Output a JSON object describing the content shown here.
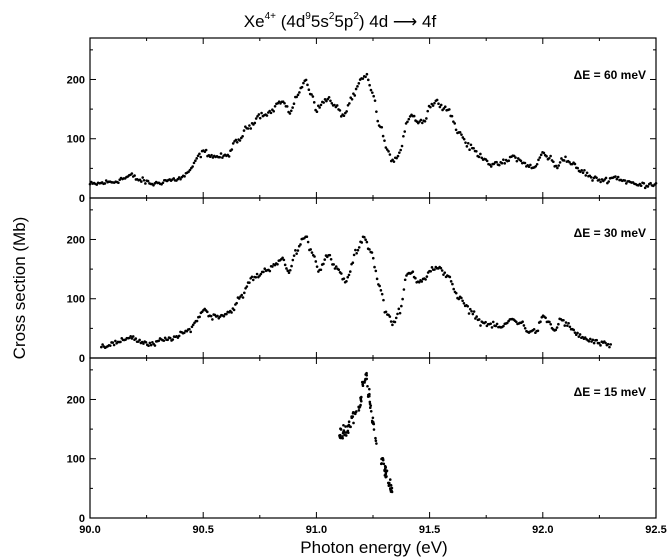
{
  "chart_data": {
    "type": "scatter",
    "title_parts": {
      "ion": "Xe",
      "charge": "4+",
      "config_open": " (4d",
      "sup_9": "9",
      "mid_5s": "5s",
      "sup_2a": "2",
      "mid_5p": "5p",
      "sup_2b": "2",
      "config_close": ") 4d ",
      "arrow": "⟶",
      "transition_end": " 4f"
    },
    "xlabel": "Photon energy (eV)",
    "ylabel": "Cross section (Mb)",
    "xlim": [
      90.0,
      92.5
    ],
    "x_ticks": [
      "90.0",
      "90.5",
      "91.0",
      "91.5",
      "92.0",
      "92.5"
    ],
    "x_tick_values": [
      90.0,
      90.5,
      91.0,
      91.5,
      92.0,
      92.5
    ],
    "ylim": [
      0,
      270
    ],
    "panels": [
      {
        "label": "ΔE = 60 meV",
        "y_ticks": [
          "0",
          "100",
          "200"
        ],
        "y_tick_values": [
          0,
          100,
          200
        ],
        "x_range": [
          90.0,
          92.5
        ],
        "curve": [
          [
            90.0,
            23
          ],
          [
            90.1,
            27
          ],
          [
            90.15,
            33
          ],
          [
            90.18,
            38
          ],
          [
            90.22,
            30
          ],
          [
            90.28,
            24
          ],
          [
            90.35,
            30
          ],
          [
            90.4,
            33
          ],
          [
            90.44,
            45
          ],
          [
            90.48,
            70
          ],
          [
            90.5,
            78
          ],
          [
            90.55,
            70
          ],
          [
            90.6,
            70
          ],
          [
            90.65,
            95
          ],
          [
            90.7,
            120
          ],
          [
            90.75,
            140
          ],
          [
            90.8,
            145
          ],
          [
            90.83,
            160
          ],
          [
            90.85,
            162
          ],
          [
            90.88,
            145
          ],
          [
            90.92,
            175
          ],
          [
            90.95,
            198
          ],
          [
            90.98,
            175
          ],
          [
            91.0,
            150
          ],
          [
            91.05,
            168
          ],
          [
            91.08,
            155
          ],
          [
            91.12,
            140
          ],
          [
            91.16,
            170
          ],
          [
            91.2,
            200
          ],
          [
            91.22,
            205
          ],
          [
            91.25,
            175
          ],
          [
            91.28,
            120
          ],
          [
            91.32,
            75
          ],
          [
            91.34,
            62
          ],
          [
            91.37,
            75
          ],
          [
            91.4,
            130
          ],
          [
            91.42,
            142
          ],
          [
            91.45,
            128
          ],
          [
            91.48,
            132
          ],
          [
            91.5,
            155
          ],
          [
            91.53,
            162
          ],
          [
            91.58,
            150
          ],
          [
            91.63,
            110
          ],
          [
            91.68,
            85
          ],
          [
            91.73,
            70
          ],
          [
            91.78,
            55
          ],
          [
            91.83,
            60
          ],
          [
            91.87,
            70
          ],
          [
            91.92,
            58
          ],
          [
            91.96,
            50
          ],
          [
            92.0,
            75
          ],
          [
            92.03,
            68
          ],
          [
            92.06,
            52
          ],
          [
            92.09,
            68
          ],
          [
            92.12,
            60
          ],
          [
            92.17,
            45
          ],
          [
            92.23,
            32
          ],
          [
            92.27,
            30
          ],
          [
            92.32,
            35
          ],
          [
            92.37,
            28
          ],
          [
            92.42,
            22
          ],
          [
            92.47,
            23
          ],
          [
            92.5,
            25
          ]
        ],
        "noise": 4,
        "density": 420
      },
      {
        "label": "ΔE = 30 meV",
        "y_ticks": [
          "0",
          "100",
          "200"
        ],
        "y_tick_values": [
          0,
          100,
          200
        ],
        "x_range": [
          90.05,
          92.3
        ],
        "curve": [
          [
            90.05,
            20
          ],
          [
            90.12,
            25
          ],
          [
            90.18,
            36
          ],
          [
            90.22,
            28
          ],
          [
            90.27,
            22
          ],
          [
            90.32,
            30
          ],
          [
            90.38,
            35
          ],
          [
            90.43,
            45
          ],
          [
            90.47,
            62
          ],
          [
            90.5,
            82
          ],
          [
            90.54,
            70
          ],
          [
            90.58,
            72
          ],
          [
            90.62,
            78
          ],
          [
            90.66,
            100
          ],
          [
            90.72,
            135
          ],
          [
            90.78,
            148
          ],
          [
            90.82,
            160
          ],
          [
            90.85,
            165
          ],
          [
            90.88,
            145
          ],
          [
            90.91,
            180
          ],
          [
            90.95,
            205
          ],
          [
            90.98,
            180
          ],
          [
            91.01,
            150
          ],
          [
            91.05,
            172
          ],
          [
            91.09,
            150
          ],
          [
            91.13,
            130
          ],
          [
            91.18,
            180
          ],
          [
            91.21,
            205
          ],
          [
            91.24,
            180
          ],
          [
            91.28,
            120
          ],
          [
            91.31,
            75
          ],
          [
            91.34,
            60
          ],
          [
            91.37,
            80
          ],
          [
            91.4,
            140
          ],
          [
            91.42,
            145
          ],
          [
            91.45,
            130
          ],
          [
            91.48,
            135
          ],
          [
            91.51,
            150
          ],
          [
            91.54,
            150
          ],
          [
            91.58,
            140
          ],
          [
            91.63,
            100
          ],
          [
            91.68,
            80
          ],
          [
            91.73,
            60
          ],
          [
            91.78,
            55
          ],
          [
            91.82,
            52
          ],
          [
            91.86,
            65
          ],
          [
            91.9,
            60
          ],
          [
            91.94,
            45
          ],
          [
            91.97,
            45
          ],
          [
            92.0,
            68
          ],
          [
            92.03,
            60
          ],
          [
            92.05,
            45
          ],
          [
            92.08,
            65
          ],
          [
            92.11,
            55
          ],
          [
            92.15,
            40
          ],
          [
            92.2,
            30
          ],
          [
            92.25,
            25
          ],
          [
            92.3,
            20
          ]
        ],
        "noise": 4,
        "density": 400
      },
      {
        "label": "ΔE = 15 meV",
        "y_ticks": [
          "0",
          "100",
          "200"
        ],
        "y_tick_values": [
          0,
          100,
          200
        ],
        "x_range": [
          91.1,
          91.34
        ],
        "curve": [
          [
            91.1,
            140
          ],
          [
            91.13,
            145
          ],
          [
            91.16,
            165
          ],
          [
            91.19,
            190
          ],
          [
            91.21,
            230
          ],
          [
            91.22,
            240
          ],
          [
            91.23,
            210
          ],
          [
            91.25,
            160
          ],
          [
            91.27,
            120
          ],
          [
            91.29,
            95
          ],
          [
            91.31,
            75
          ],
          [
            91.32,
            60
          ],
          [
            91.33,
            50
          ],
          [
            91.34,
            40
          ]
        ],
        "noise": 10,
        "density": 120
      }
    ]
  }
}
